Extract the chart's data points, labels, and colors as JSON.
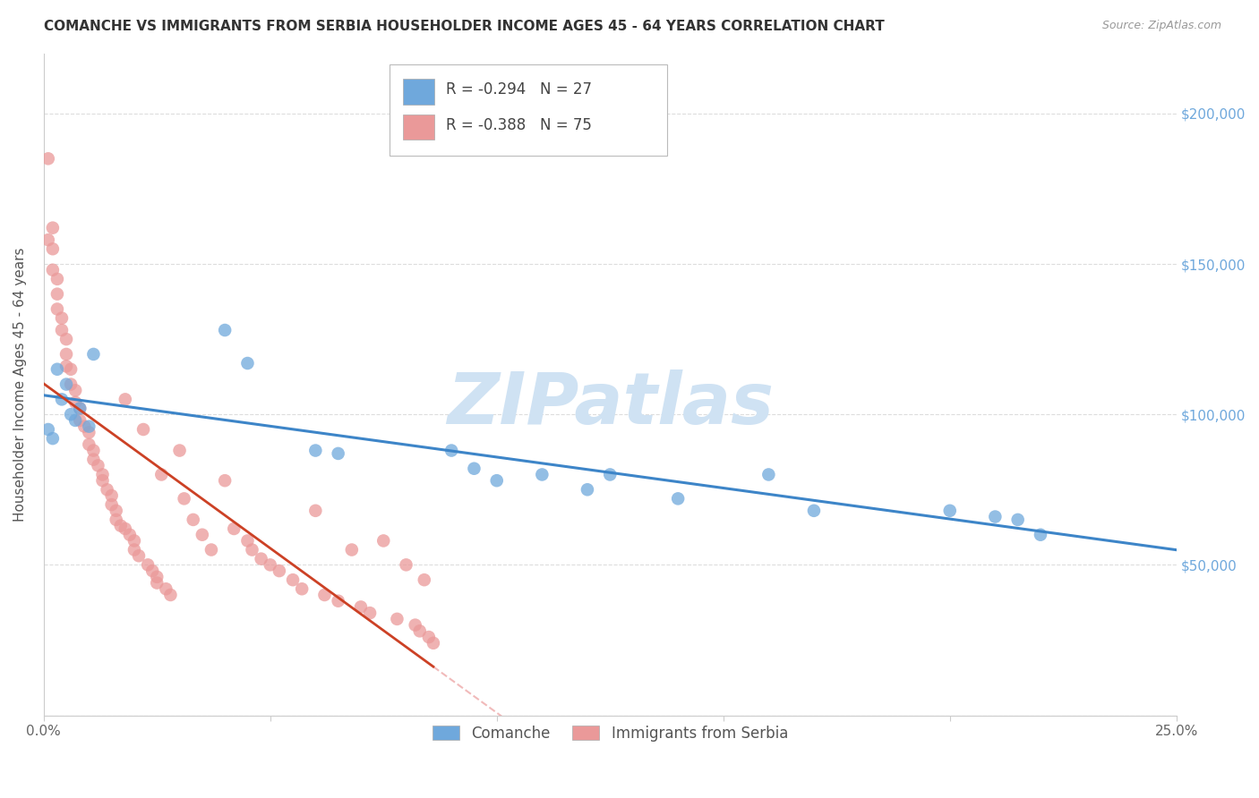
{
  "title": "COMANCHE VS IMMIGRANTS FROM SERBIA HOUSEHOLDER INCOME AGES 45 - 64 YEARS CORRELATION CHART",
  "source": "Source: ZipAtlas.com",
  "ylabel": "Householder Income Ages 45 - 64 years",
  "xlim": [
    0.0,
    0.25
  ],
  "ylim": [
    0,
    220000
  ],
  "yticks": [
    0,
    50000,
    100000,
    150000,
    200000
  ],
  "ytick_labels": [
    "",
    "$50,000",
    "$100,000",
    "$150,000",
    "$200,000"
  ],
  "xticks": [
    0.0,
    0.05,
    0.1,
    0.15,
    0.2,
    0.25
  ],
  "xtick_labels": [
    "0.0%",
    "",
    "",
    "",
    "",
    "25.0%"
  ],
  "legend1_r": "-0.294",
  "legend1_n": "27",
  "legend2_r": "-0.388",
  "legend2_n": "75",
  "blue_color": "#6fa8dc",
  "pink_color": "#ea9999",
  "blue_line_color": "#3d85c8",
  "pink_line_color": "#cc4125",
  "pink_dash_color": "#e06666",
  "watermark_text": "ZIPatlas",
  "watermark_color": "#cfe2f3",
  "grid_color": "#dddddd",
  "title_color": "#333333",
  "right_tick_color": "#6fa8dc",
  "comanche_x": [
    0.001,
    0.002,
    0.003,
    0.004,
    0.005,
    0.006,
    0.007,
    0.008,
    0.01,
    0.011,
    0.04,
    0.045,
    0.06,
    0.065,
    0.09,
    0.095,
    0.1,
    0.11,
    0.12,
    0.125,
    0.14,
    0.16,
    0.17,
    0.2,
    0.21,
    0.215,
    0.22
  ],
  "comanche_y": [
    95000,
    92000,
    115000,
    105000,
    110000,
    100000,
    98000,
    102000,
    96000,
    120000,
    128000,
    117000,
    88000,
    87000,
    88000,
    82000,
    78000,
    80000,
    75000,
    80000,
    72000,
    80000,
    68000,
    68000,
    66000,
    65000,
    60000
  ],
  "serbia_x": [
    0.001,
    0.001,
    0.002,
    0.002,
    0.002,
    0.003,
    0.003,
    0.003,
    0.004,
    0.004,
    0.005,
    0.005,
    0.005,
    0.006,
    0.006,
    0.007,
    0.007,
    0.008,
    0.008,
    0.009,
    0.01,
    0.01,
    0.011,
    0.011,
    0.012,
    0.013,
    0.013,
    0.014,
    0.015,
    0.015,
    0.016,
    0.016,
    0.017,
    0.018,
    0.018,
    0.019,
    0.02,
    0.02,
    0.021,
    0.022,
    0.023,
    0.024,
    0.025,
    0.025,
    0.026,
    0.027,
    0.028,
    0.03,
    0.031,
    0.033,
    0.035,
    0.037,
    0.04,
    0.042,
    0.045,
    0.046,
    0.048,
    0.05,
    0.052,
    0.055,
    0.057,
    0.06,
    0.062,
    0.065,
    0.068,
    0.07,
    0.072,
    0.075,
    0.078,
    0.08,
    0.082,
    0.083,
    0.084,
    0.085,
    0.086
  ],
  "serbia_y": [
    185000,
    158000,
    162000,
    155000,
    148000,
    145000,
    140000,
    135000,
    132000,
    128000,
    125000,
    120000,
    116000,
    115000,
    110000,
    108000,
    104000,
    102000,
    98000,
    96000,
    94000,
    90000,
    88000,
    85000,
    83000,
    80000,
    78000,
    75000,
    73000,
    70000,
    68000,
    65000,
    63000,
    105000,
    62000,
    60000,
    58000,
    55000,
    53000,
    95000,
    50000,
    48000,
    46000,
    44000,
    80000,
    42000,
    40000,
    88000,
    72000,
    65000,
    60000,
    55000,
    78000,
    62000,
    58000,
    55000,
    52000,
    50000,
    48000,
    45000,
    42000,
    68000,
    40000,
    38000,
    55000,
    36000,
    34000,
    58000,
    32000,
    50000,
    30000,
    28000,
    45000,
    26000,
    24000
  ]
}
